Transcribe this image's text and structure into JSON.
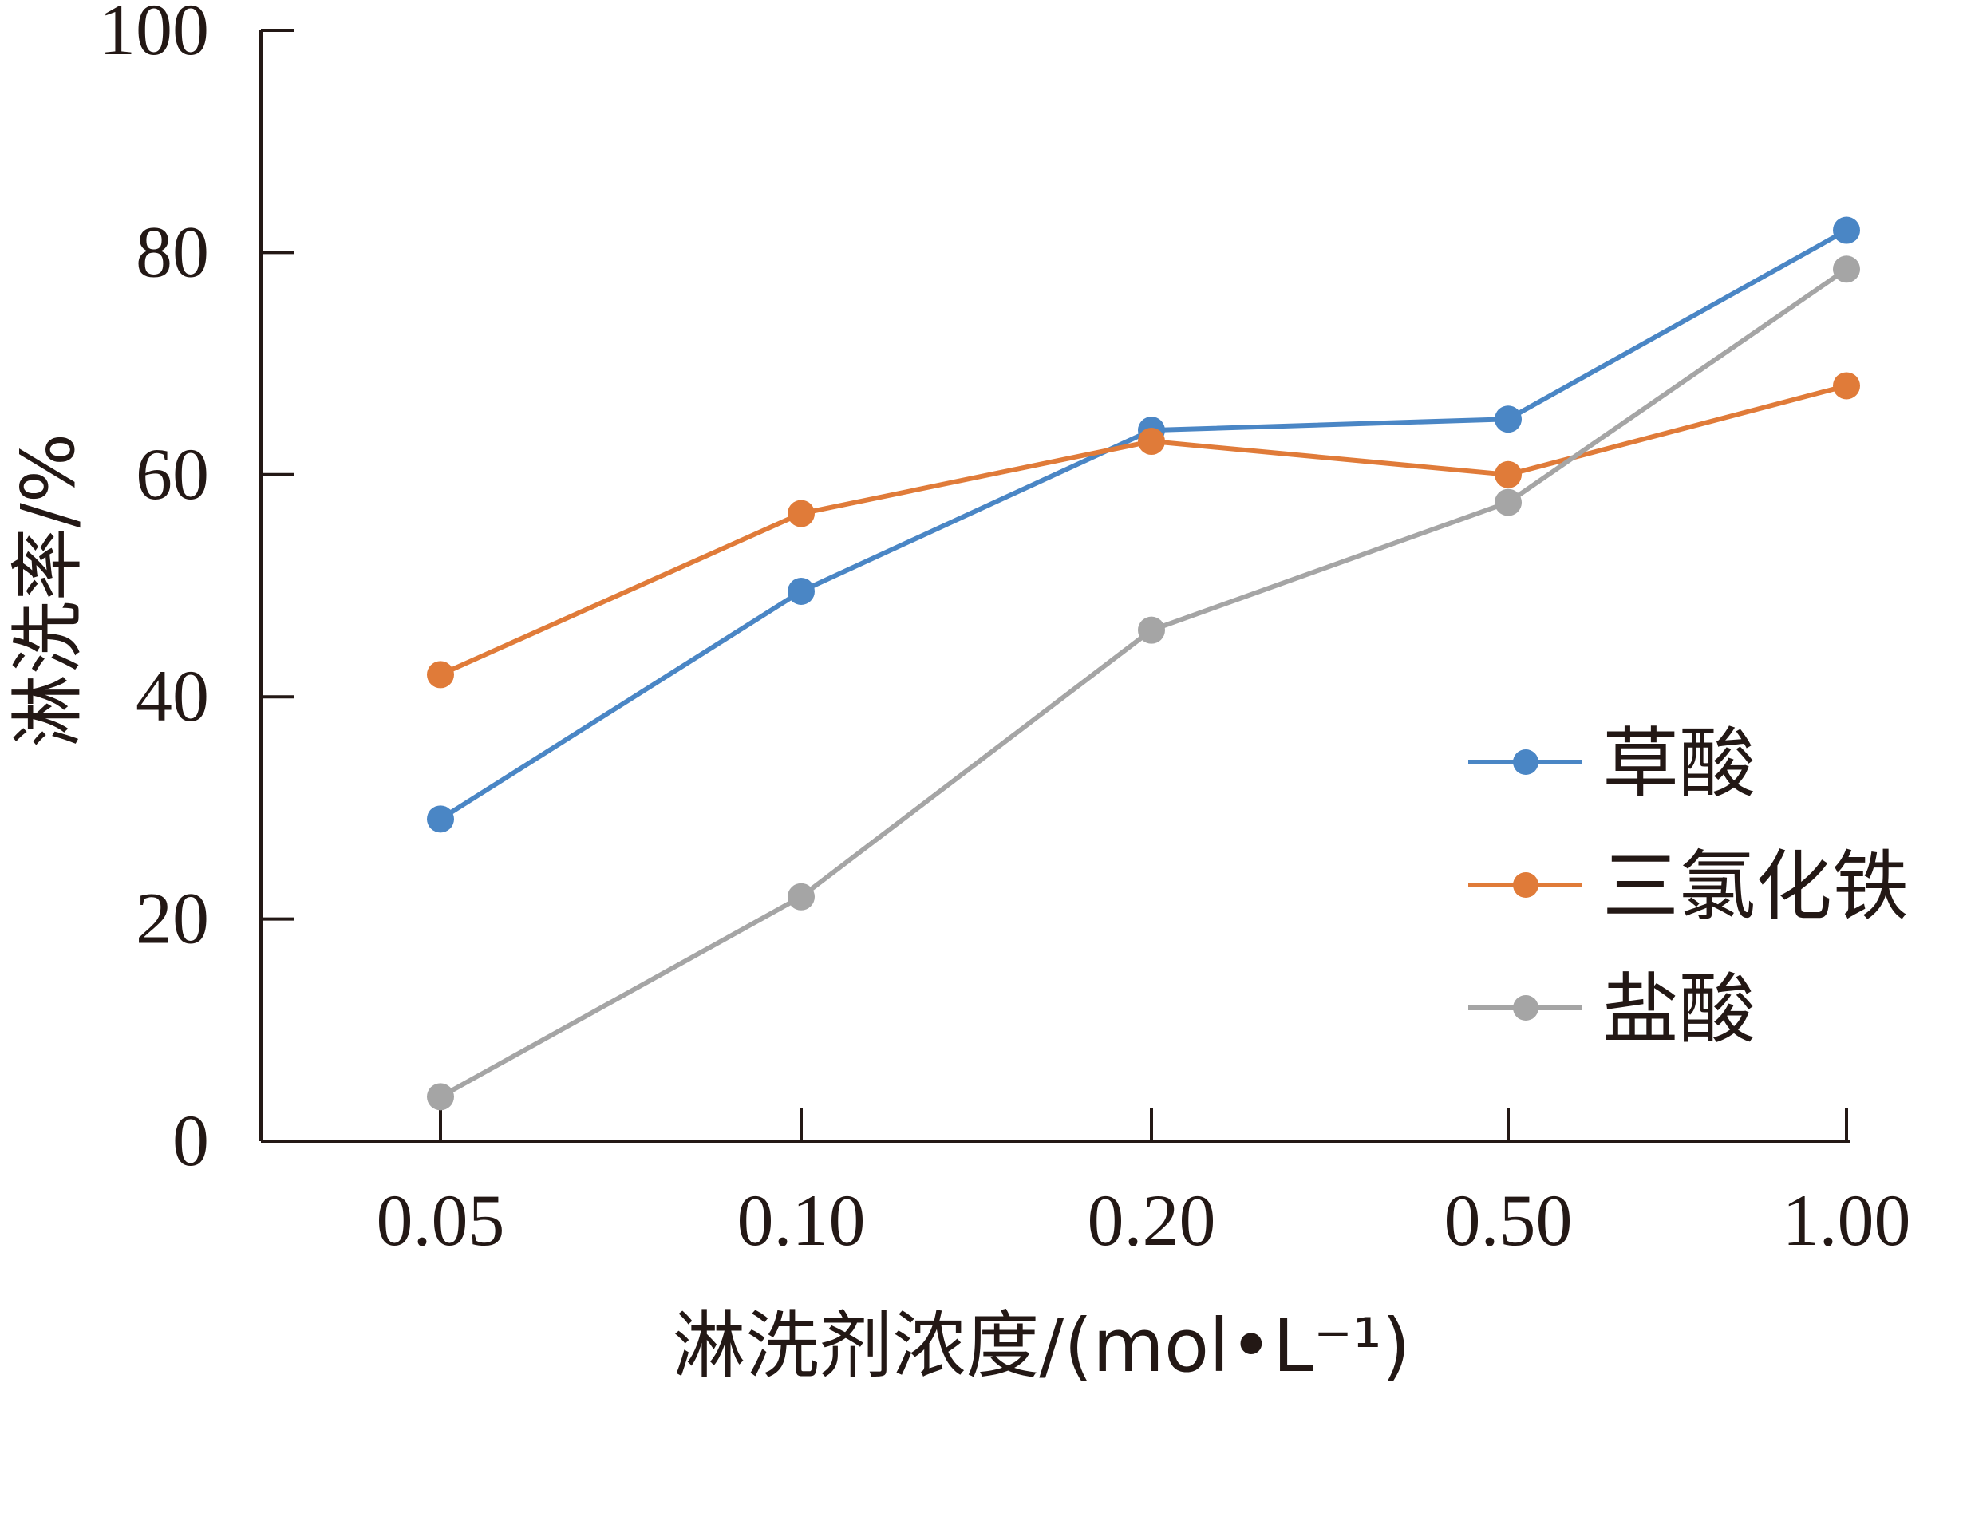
{
  "chart_data": {
    "type": "line",
    "categories": [
      "0.05",
      "0.10",
      "0.20",
      "0.50",
      "1.00"
    ],
    "xlabel": "淋洗剂浓度/(mol•L⁻¹)",
    "ylabel": "淋洗率/%",
    "ylim": [
      0,
      100
    ],
    "yticks": [
      "0",
      "20",
      "40",
      "60",
      "80",
      "100"
    ],
    "grid": false,
    "legend_position": "right",
    "series": [
      {
        "name": "草酸",
        "color": "#4A86C5",
        "values": [
          29,
          49.5,
          64,
          65,
          82
        ]
      },
      {
        "name": "三氯化铁",
        "color": "#E07B39",
        "values": [
          42,
          56.5,
          63,
          60,
          68
        ]
      },
      {
        "name": "盐酸",
        "color": "#A5A5A5",
        "values": [
          4,
          22,
          46,
          57.5,
          78.5
        ]
      }
    ]
  }
}
